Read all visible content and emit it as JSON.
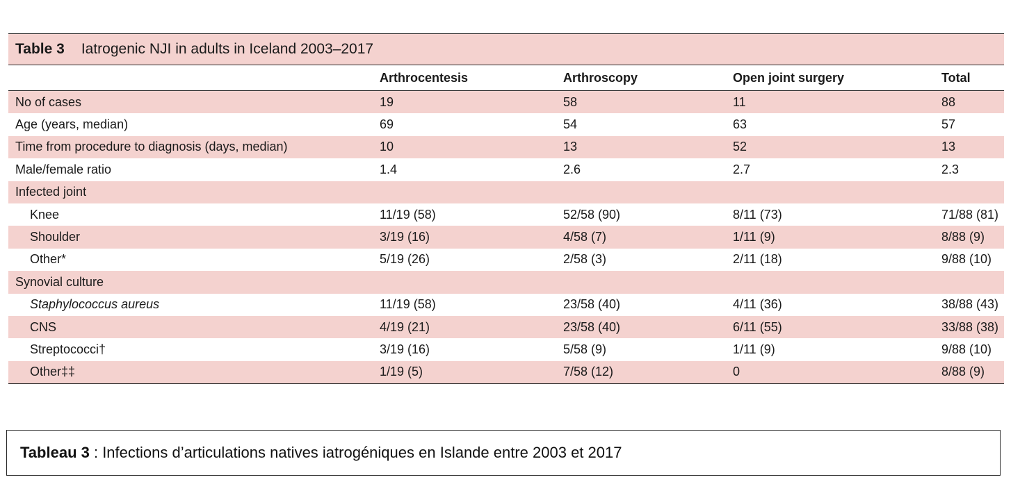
{
  "table": {
    "label": "Table 3",
    "title": "Iatrogenic NJI in adults in Iceland 2003–2017",
    "headers": [
      "",
      "Arthrocentesis",
      "Arthroscopy",
      "Open joint surgery",
      "Total"
    ],
    "rows": [
      {
        "label": "No of cases",
        "cells": [
          "19",
          "58",
          "11",
          "88"
        ]
      },
      {
        "label": "Age (years, median)",
        "cells": [
          "69",
          "54",
          "63",
          "57"
        ]
      },
      {
        "label": "Time from procedure to diagnosis (days, median)",
        "cells": [
          "10",
          "13",
          "52",
          "13"
        ]
      },
      {
        "label": "Male/female ratio",
        "cells": [
          "1.4",
          "2.6",
          "2.7",
          "2.3"
        ]
      },
      {
        "label": "Infected joint",
        "cells": [
          "",
          "",
          "",
          ""
        ]
      },
      {
        "label": "Knee",
        "cells": [
          "11/19 (58)",
          "52/58 (90)",
          "8/11 (73)",
          "71/88 (81)"
        ]
      },
      {
        "label": "Shoulder",
        "cells": [
          "3/19 (16)",
          "4/58 (7)",
          "1/11 (9)",
          "8/88 (9)"
        ]
      },
      {
        "label": "Other*",
        "cells": [
          "5/19 (26)",
          "2/58 (3)",
          "2/11 (18)",
          "9/88 (10)"
        ]
      },
      {
        "label": "Synovial culture",
        "cells": [
          "",
          "",
          "",
          ""
        ]
      },
      {
        "label": "Staphylococcus aureus",
        "cells": [
          "11/19 (58)",
          "23/58 (40)",
          "4/11 (36)",
          "38/88 (43)"
        ]
      },
      {
        "label": "CNS",
        "cells": [
          "4/19 (21)",
          "23/58 (40)",
          "6/11 (55)",
          "33/88 (38)"
        ]
      },
      {
        "label": "Streptococci†",
        "cells": [
          "3/19 (16)",
          "5/58 (9)",
          "1/11 (9)",
          "9/88 (10)"
        ]
      },
      {
        "label": "Other‡‡",
        "cells": [
          "1/19 (5)",
          "7/58 (12)",
          "0",
          "8/88 (9)"
        ]
      }
    ]
  },
  "caption": {
    "label": "Tableau 3",
    "text": " : Infections d’articulations natives iatrogéniques en Islande entre 2003 et 2017"
  },
  "colors": {
    "shade": "#f4d2cf",
    "rule": "#2a2a2a"
  }
}
